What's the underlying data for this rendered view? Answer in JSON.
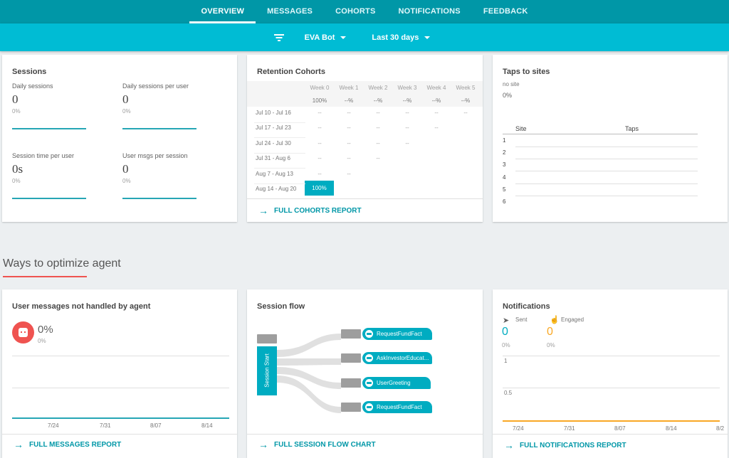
{
  "nav": {
    "tabs": [
      "OVERVIEW",
      "MESSAGES",
      "COHORTS",
      "NOTIFICATIONS",
      "FEEDBACK"
    ],
    "active": "OVERVIEW"
  },
  "filters": {
    "bot": "EVA Bot",
    "range": "Last 30 days"
  },
  "sessions": {
    "title": "Sessions",
    "metrics": [
      {
        "label": "Daily sessions",
        "value": "0",
        "change": "0%"
      },
      {
        "label": "Daily sessions per user",
        "value": "0",
        "change": "0%"
      },
      {
        "label": "Session time per user",
        "value": "0s",
        "change": "0%"
      },
      {
        "label": "User msgs per session",
        "value": "0",
        "change": "0%"
      }
    ]
  },
  "retention": {
    "title": "Retention Cohorts",
    "weeks": [
      "Week 0",
      "Week 1",
      "Week 2",
      "Week 3",
      "Week 4",
      "Week 5"
    ],
    "totals": [
      "100%",
      "--%",
      "--%",
      "--%",
      "--%",
      "--%"
    ],
    "rows": [
      {
        "label": "Jul 10 - Jul 16",
        "cells": [
          "--",
          "--",
          "--",
          "--",
          "--",
          "--"
        ]
      },
      {
        "label": "Jul 17 - Jul 23",
        "cells": [
          "--",
          "--",
          "--",
          "--",
          "--"
        ]
      },
      {
        "label": "Jul 24 - Jul 30",
        "cells": [
          "--",
          "--",
          "--",
          "--"
        ]
      },
      {
        "label": "Jul 31 - Aug 6",
        "cells": [
          "--",
          "--",
          "--"
        ]
      },
      {
        "label": "Aug 7 - Aug 13",
        "cells": [
          "--",
          "--"
        ]
      },
      {
        "label": "Aug 14 - Aug 20",
        "cells": [
          "100%"
        ]
      }
    ],
    "link": "FULL COHORTS REPORT"
  },
  "taps": {
    "title": "Taps to sites",
    "site_label": "no site",
    "site_value": "0%",
    "col_site": "Site",
    "col_taps": "Taps",
    "rows": [
      "1",
      "2",
      "3",
      "4",
      "5",
      "6"
    ]
  },
  "section": {
    "title": "Ways to optimize agent"
  },
  "unhandled": {
    "title": "User messages not handled by agent",
    "value": "0%",
    "change": "0%",
    "x_ticks": [
      "7/24",
      "7/31",
      "8/07",
      "8/14"
    ],
    "link": "FULL MESSAGES REPORT"
  },
  "flow": {
    "title": "Session flow",
    "start_label": "Session Start",
    "intents": [
      "RequestFundFact",
      "AskInvestorEducat...",
      "UserGreeting",
      "RequestFundFact"
    ],
    "link": "FULL SESSION FLOW CHART"
  },
  "notifications": {
    "title": "Notifications",
    "sent_label": "Sent",
    "sent_value": "0",
    "sent_change": "0%",
    "engaged_label": "Engaged",
    "engaged_value": "0",
    "engaged_change": "0%",
    "y_ticks": [
      "1",
      "0.5"
    ],
    "x_ticks": [
      "7/24",
      "7/31",
      "8/07",
      "8/14",
      "8/2"
    ],
    "link": "FULL NOTIFICATIONS REPORT",
    "sent_color": "#00acc1",
    "engaged_color": "#f9a825"
  },
  "colors": {
    "accent": "#00bcd4",
    "nav": "#0097a7",
    "highlight": "#ef5350"
  }
}
